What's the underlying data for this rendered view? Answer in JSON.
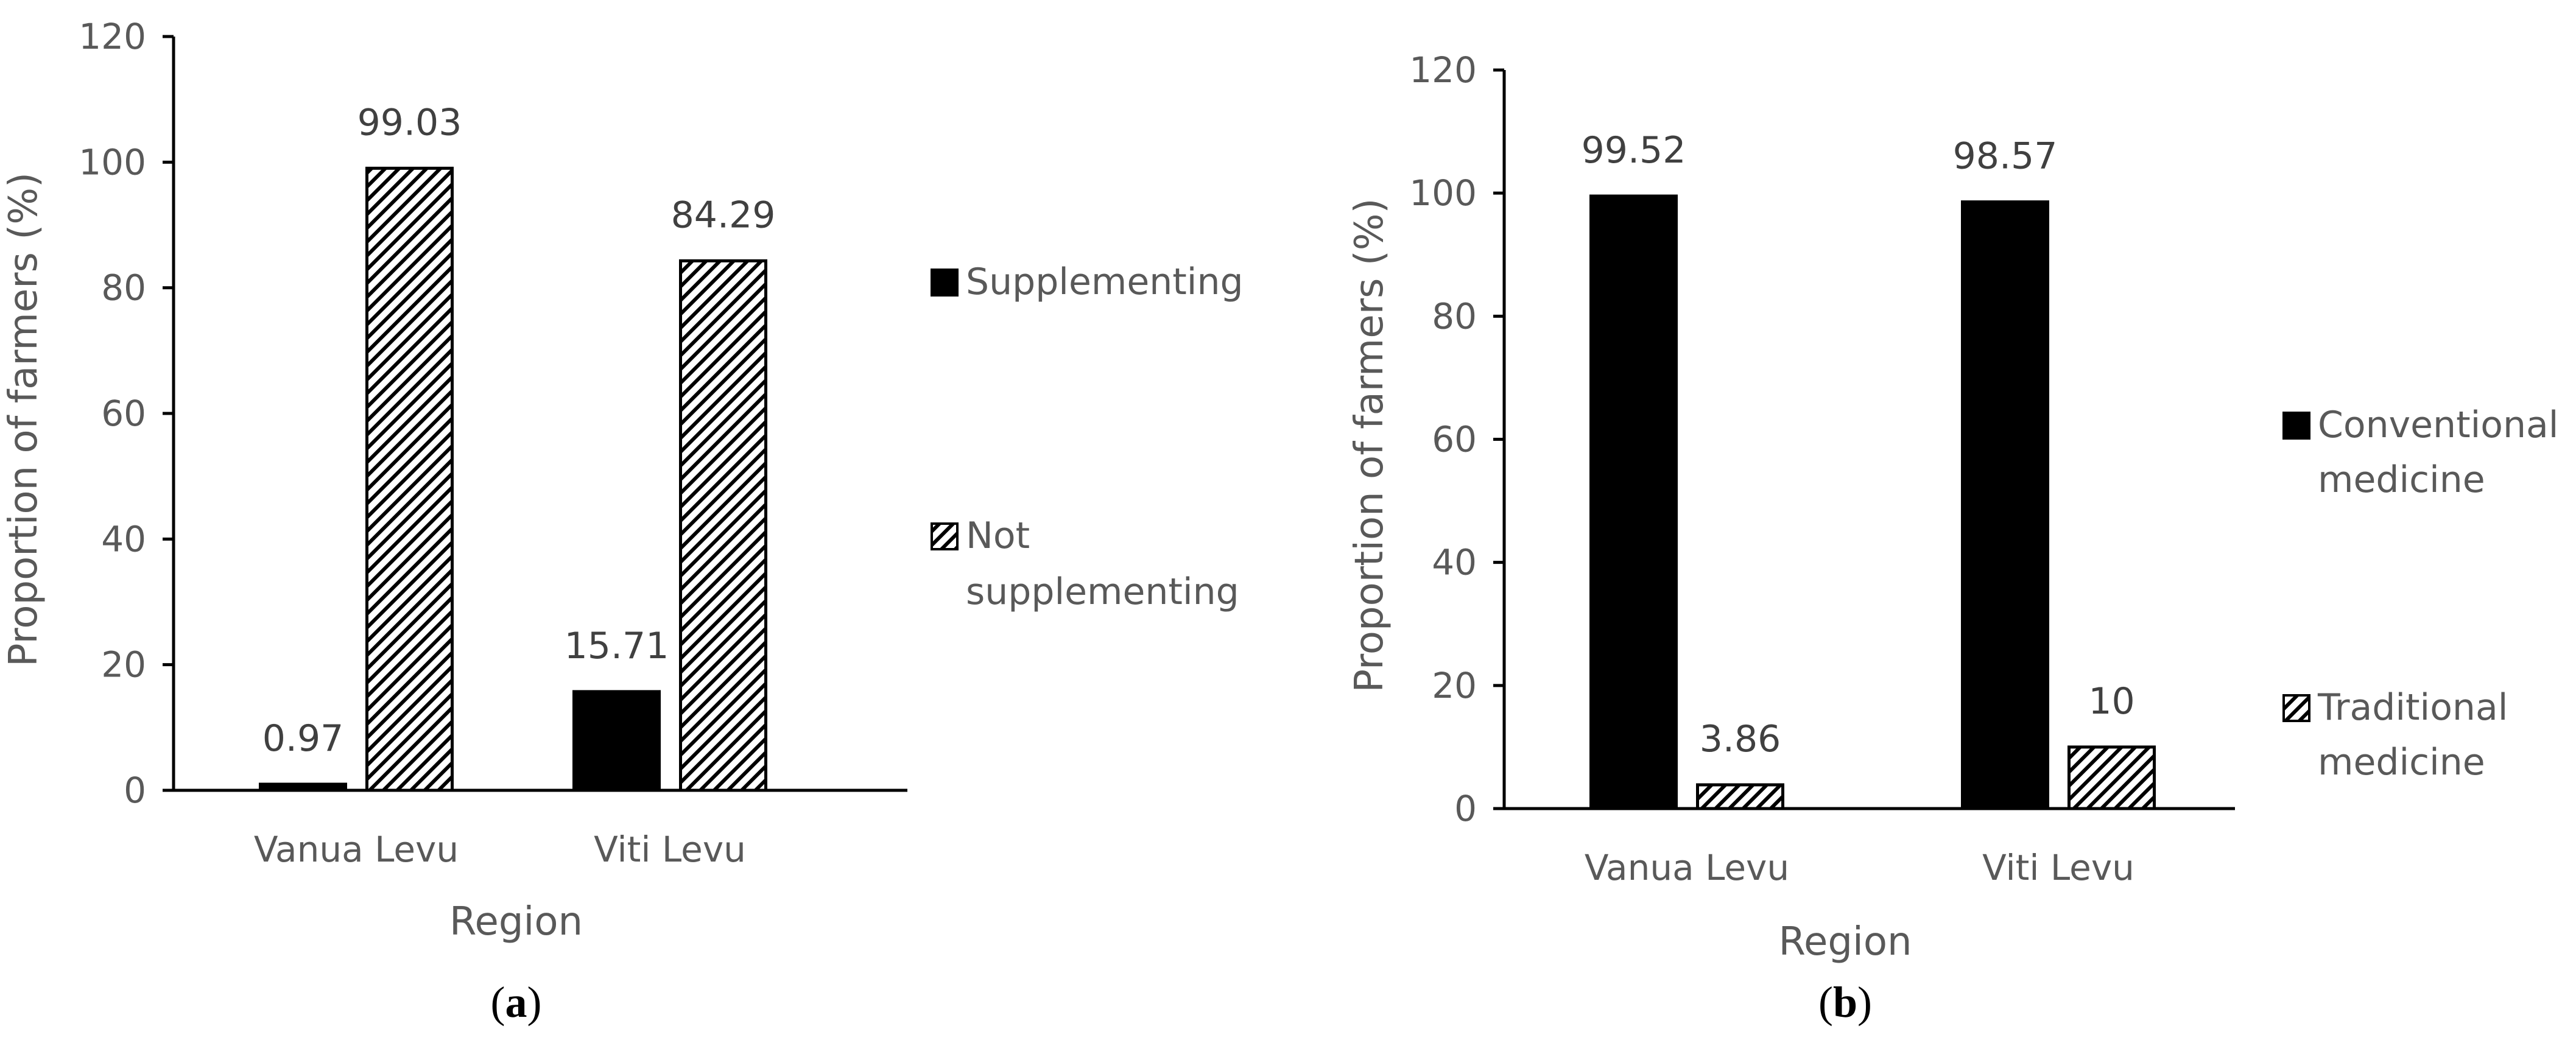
{
  "colors": {
    "bar_solid": "#000000",
    "bar_hatch": "#ffffff",
    "axis": "#000000",
    "text": "#595959",
    "label": "#404040"
  },
  "chart_data": [
    {
      "type": "bar",
      "panel": {
        "open": "(",
        "letter": "a",
        "close": ")"
      },
      "categories": [
        "Vanua Levu",
        "Viti Levu"
      ],
      "series": [
        {
          "name": "Supplementing",
          "values": [
            0.97,
            15.71
          ],
          "fill": "solid"
        },
        {
          "name": "Not supplementing",
          "values": [
            99.03,
            84.29
          ],
          "fill": "hatch"
        }
      ],
      "data_labels": [
        [
          "0.97",
          "15.71"
        ],
        [
          "99.03",
          "84.29"
        ]
      ],
      "xlabel": "Region",
      "ylabel": "Proportion of  farmers (%)",
      "ylim": [
        0,
        120
      ],
      "yticks": [
        0,
        20,
        40,
        60,
        80,
        100,
        120
      ],
      "grid": false,
      "legend": {
        "position": "right",
        "entries": [
          [
            "Supplementing"
          ],
          [
            "Not",
            "supplementing"
          ]
        ]
      }
    },
    {
      "type": "bar",
      "panel": {
        "open": "(",
        "letter": "b",
        "close": ")"
      },
      "categories": [
        "Vanua Levu",
        "Viti Levu"
      ],
      "series": [
        {
          "name": "Conventional medicine",
          "values": [
            99.52,
            98.57
          ],
          "fill": "solid"
        },
        {
          "name": "Traditional medicine",
          "values": [
            3.86,
            10
          ],
          "fill": "hatch"
        }
      ],
      "data_labels": [
        [
          "99.52",
          "98.57"
        ],
        [
          "3.86",
          "10"
        ]
      ],
      "xlabel": "Region",
      "ylabel": "Proportion of  farmers  (%)",
      "ylim": [
        0,
        120
      ],
      "yticks": [
        0,
        20,
        40,
        60,
        80,
        100,
        120
      ],
      "grid": false,
      "legend": {
        "position": "right",
        "entries": [
          [
            "Conventional",
            "medicine"
          ],
          [
            "Traditional",
            "medicine"
          ]
        ]
      }
    }
  ]
}
